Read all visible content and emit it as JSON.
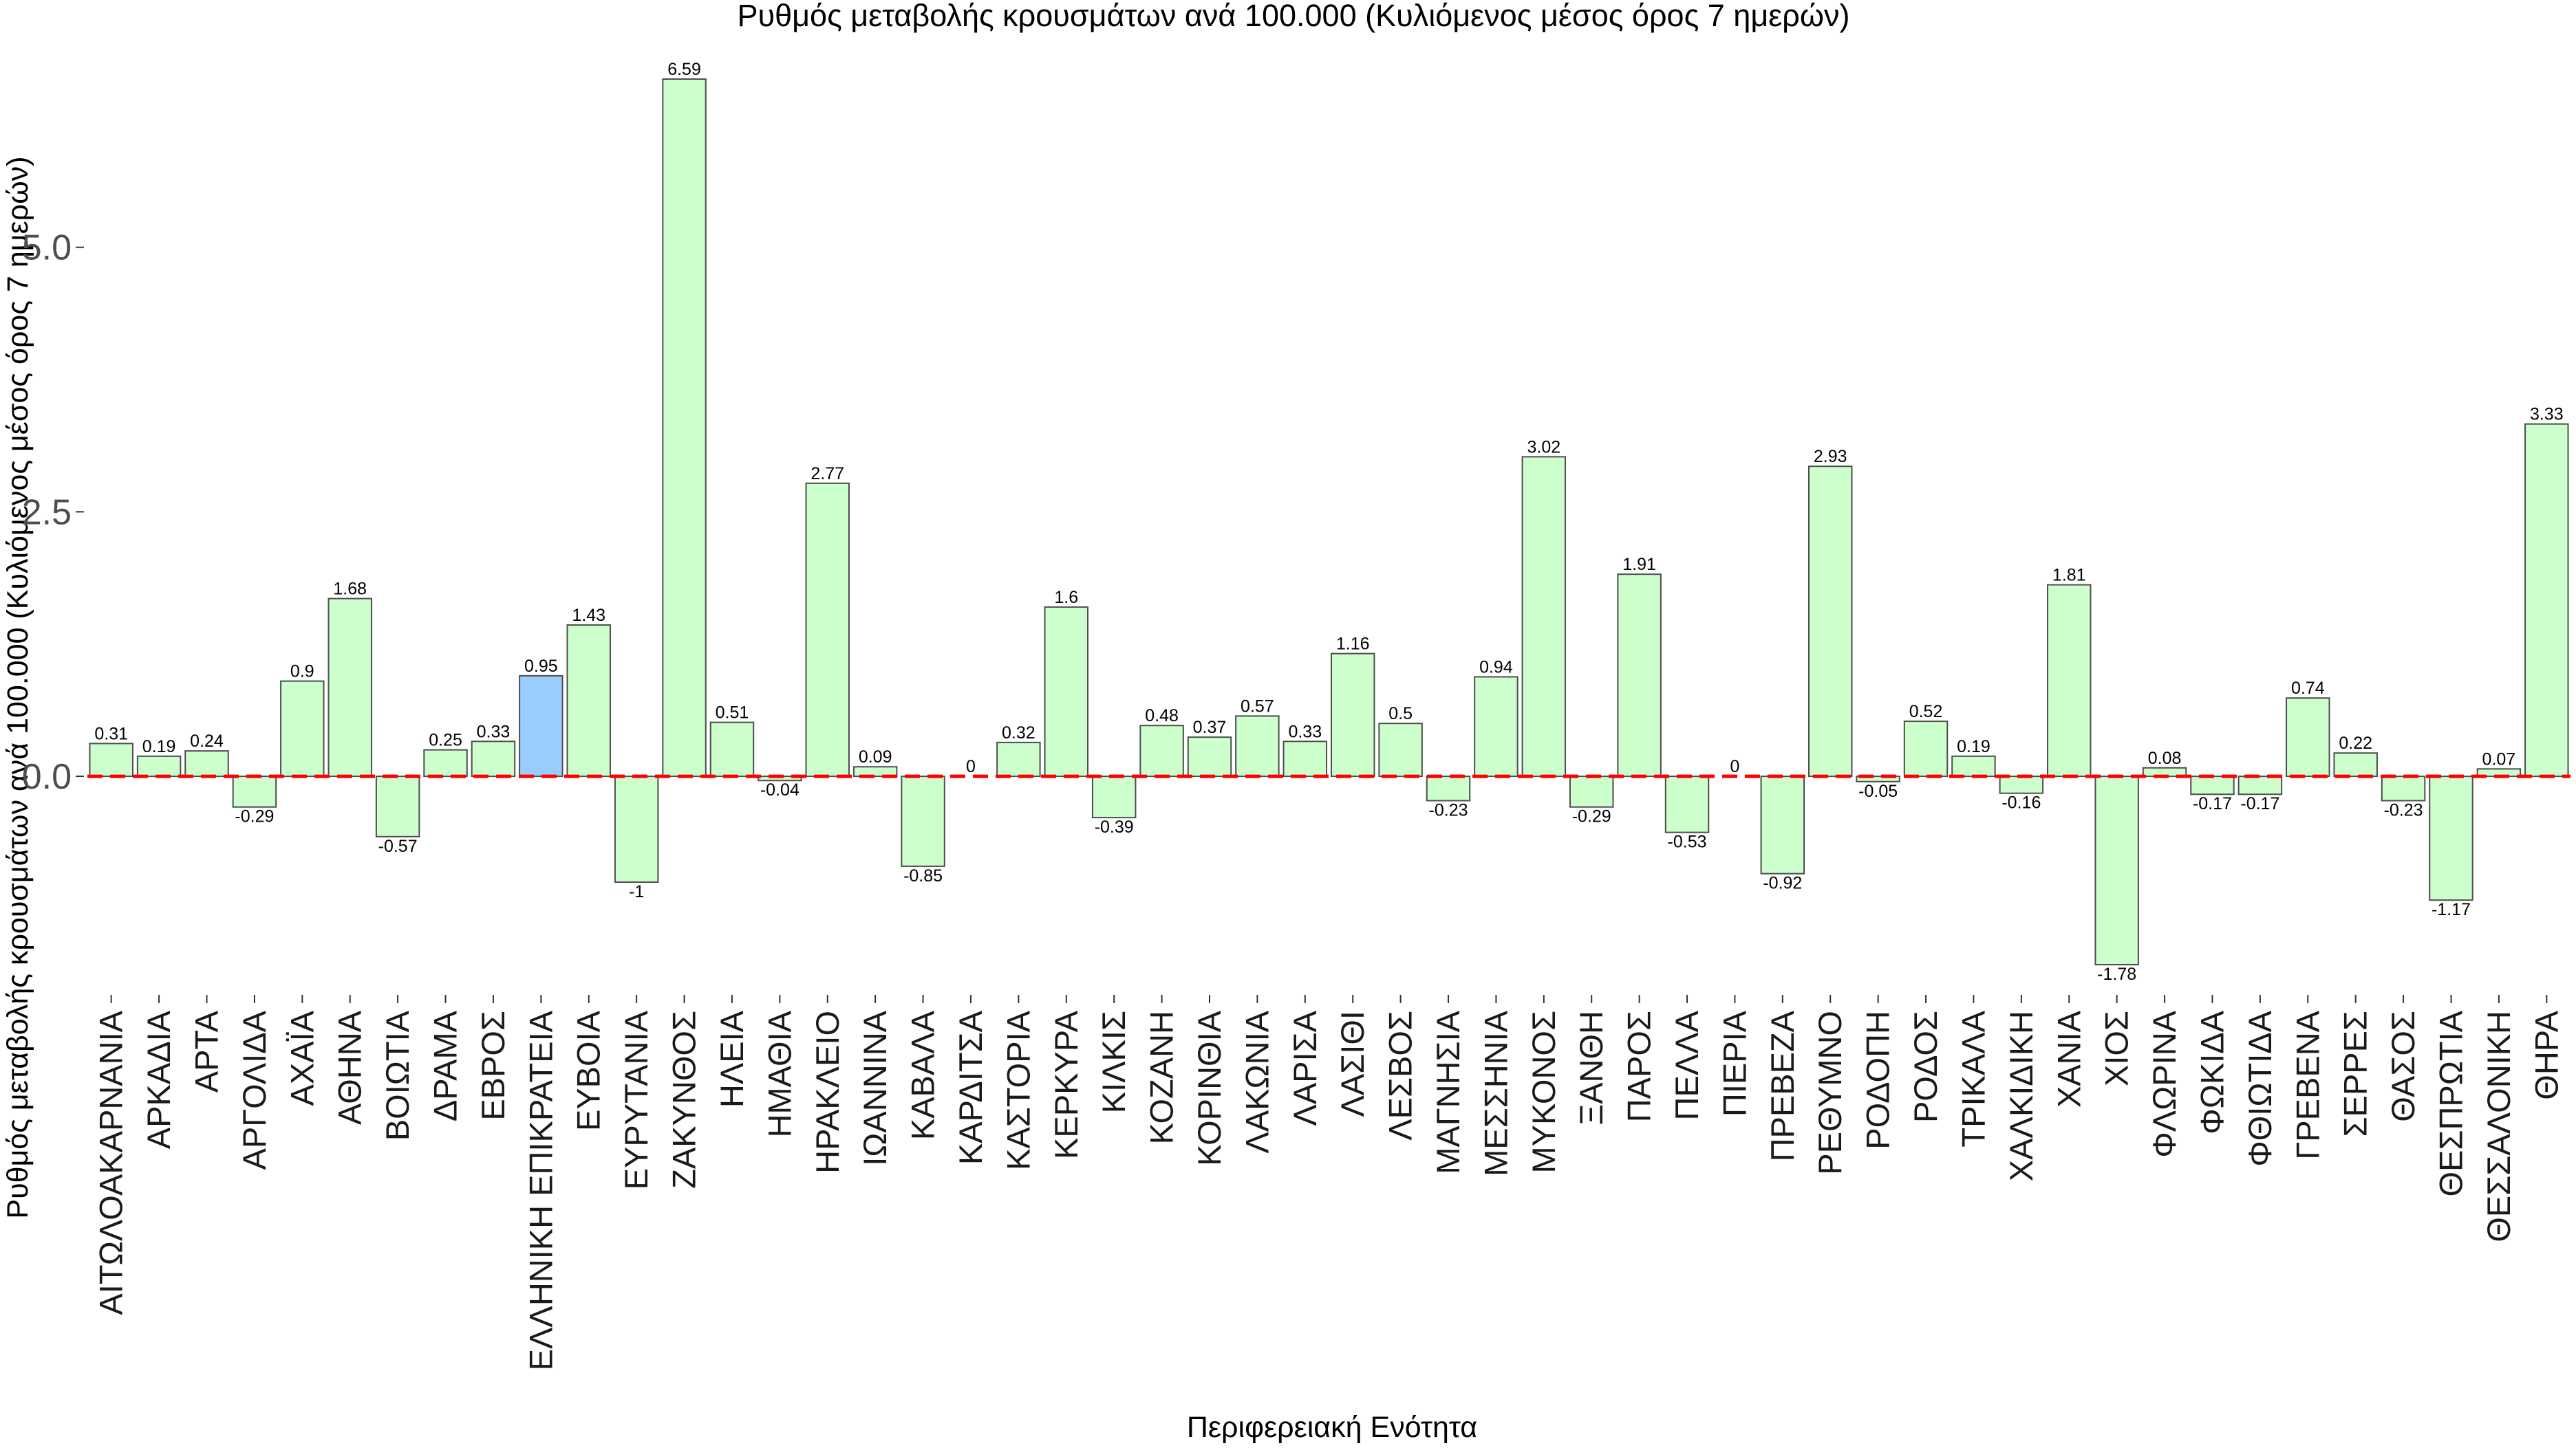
{
  "chart_data": {
    "type": "bar",
    "title": "Ρυθμός μεταβολής κρουσμάτων ανά 100.000 (Κυλιόμενος μέσος όρος 7 ημερών)",
    "xlabel": "Περιφερειακή Ενότητα",
    "ylabel": "Ρυθμός μεταβολής κρουσμάτων ανά 100.000 (Κυλιόμενος μέσος όρος 7 ημερών)",
    "ylim": [
      -1.78,
      6.59
    ],
    "yticks": [
      0.0,
      2.5,
      5.0
    ],
    "ytick_labels": [
      "0.0",
      "2.5",
      "5.0"
    ],
    "reference_line": {
      "y": 0,
      "style": "dashed",
      "color": "#ff0000"
    },
    "bar_color": "#ccffcc",
    "highlight_color": "#99ccff",
    "highlight_category": "ΕΛΛΗΝΙΚΗ ΕΠΙΚΡΑΤΕΙΑ",
    "categories": [
      "ΑΙΤΩΛΟΑΚΑΡΝΑΝΙΑ",
      "ΑΡΚΑΔΙΑ",
      "ΑΡΤΑ",
      "ΑΡΓΟΛΙΔΑ",
      "ΑΧΑΪΑ",
      "ΑΘΗΝΑ",
      "ΒΟΙΩΤΙΑ",
      "ΔΡΑΜΑ",
      "ΕΒΡΟΣ",
      "ΕΛΛΗΝΙΚΗ ΕΠΙΚΡΑΤΕΙΑ",
      "ΕΥΒΟΙΑ",
      "ΕΥΡΥΤΑΝΙΑ",
      "ΖΑΚΥΝΘΟΣ",
      "ΗΛΕΙΑ",
      "ΗΜΑΘΙΑ",
      "ΗΡΑΚΛΕΙΟ",
      "ΙΩΑΝΝΙΝΑ",
      "ΚΑΒΑΛΑ",
      "ΚΑΡΔΙΤΣΑ",
      "ΚΑΣΤΟΡΙΑ",
      "ΚΕΡΚΥΡΑ",
      "ΚΙΛΚΙΣ",
      "ΚΟΖΑΝΗ",
      "ΚΟΡΙΝΘΙΑ",
      "ΛΑΚΩΝΙΑ",
      "ΛΑΡΙΣΑ",
      "ΛΑΣΙΘΙ",
      "ΛΕΣΒΟΣ",
      "ΜΑΓΝΗΣΙΑ",
      "ΜΕΣΣΗΝΙΑ",
      "ΜΥΚΟΝΟΣ",
      "ΞΑΝΘΗ",
      "ΠΑΡΟΣ",
      "ΠΕΛΛΑ",
      "ΠΙΕΡΙΑ",
      "ΠΡΕΒΕΖΑ",
      "ΡΕΘΥΜΝΟ",
      "ΡΟΔΟΠΗ",
      "ΡΟΔΟΣ",
      "ΤΡΙΚΑΛΑ",
      "ΧΑΛΚΙΔΙΚΗ",
      "ΧΑΝΙΑ",
      "ΧΙΟΣ",
      "ΦΛΩΡΙΝΑ",
      "ΦΩΚΙΔΑ",
      "ΦΘΙΩΤΙΔΑ",
      "ΓΡΕΒΕΝΑ",
      "ΣΕΡΡΕΣ",
      "ΘΑΣΟΣ",
      "ΘΕΣΠΡΩΤΙΑ",
      "ΘΕΣΣΑΛΟΝΙΚΗ",
      "ΘΗΡΑ"
    ],
    "values": [
      0.31,
      0.19,
      0.24,
      -0.29,
      0.9,
      1.68,
      -0.57,
      0.25,
      0.33,
      0.95,
      1.43,
      -1,
      6.59,
      0.51,
      -0.04,
      2.77,
      0.09,
      -0.85,
      0,
      0.32,
      1.6,
      -0.39,
      0.48,
      0.37,
      0.57,
      0.33,
      1.16,
      0.5,
      -0.23,
      0.94,
      3.02,
      -0.29,
      1.91,
      -0.53,
      0,
      -0.92,
      2.93,
      -0.05,
      0.52,
      0.19,
      -0.16,
      1.81,
      -1.78,
      0.08,
      -0.17,
      -0.17,
      0.74,
      0.22,
      -0.23,
      -1.17,
      0.07,
      3.33
    ],
    "data_labels": [
      "0.31",
      "0.19",
      "0.24",
      "-0.29",
      "0.9",
      "1.68",
      "-0.57",
      "0.25",
      "0.33",
      "0.95",
      "1.43",
      "-1",
      "6.59",
      "0.51",
      "-0.04",
      "2.77",
      "0.09",
      "-0.85",
      "0",
      "0.32",
      "1.6",
      "-0.39",
      "0.48",
      "0.37",
      "0.57",
      "0.33",
      "1.16",
      "0.5",
      "-0.23",
      "0.94",
      "3.02",
      "-0.29",
      "1.91",
      "-0.53",
      "0",
      "-0.92",
      "2.93",
      "-0.05",
      "0.52",
      "0.19",
      "-0.16",
      "1.81",
      "-1.78",
      "0.08",
      "-0.17",
      "-0.17",
      "0.74",
      "0.22",
      "-0.23",
      "-1.17",
      "0.07",
      "3.33"
    ]
  }
}
